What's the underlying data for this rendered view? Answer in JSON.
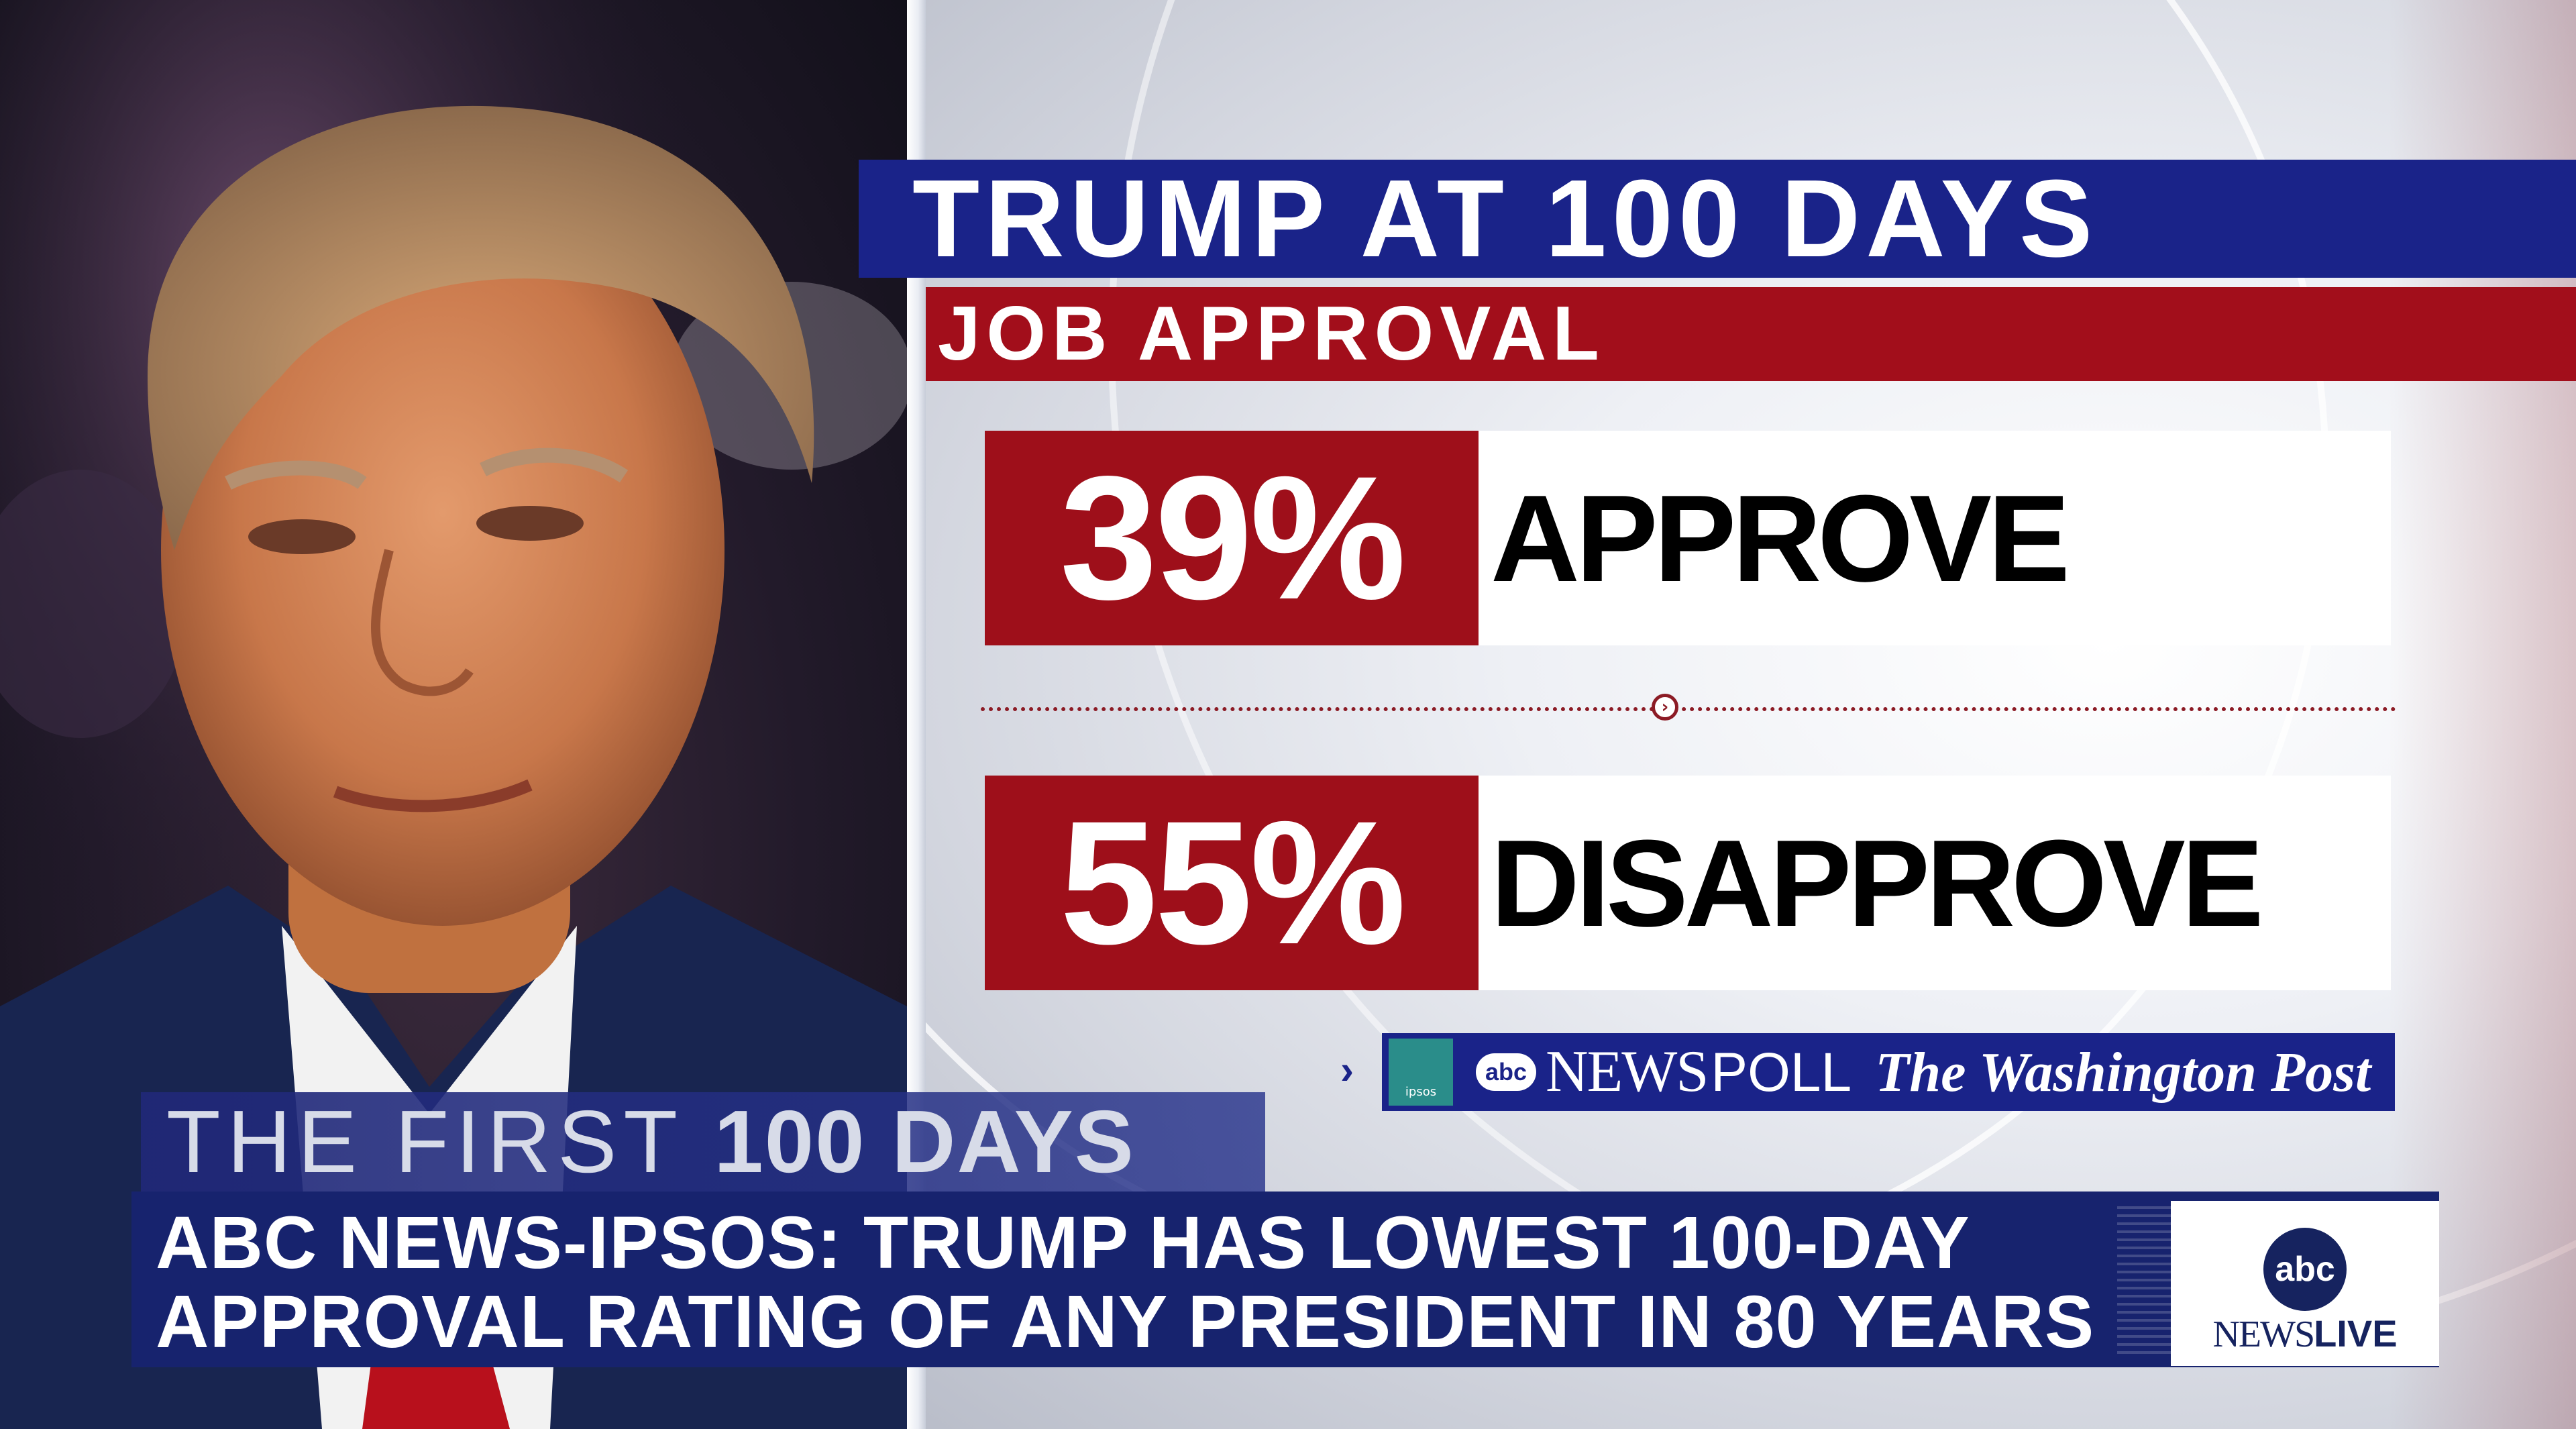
{
  "headline": {
    "title": "TRUMP AT 100 DAYS",
    "subtitle": "JOB APPROVAL"
  },
  "stats": [
    {
      "percent": "39%",
      "label": "APPROVE",
      "value": 39
    },
    {
      "percent": "55%",
      "label": "DISAPPROVE",
      "value": 55
    }
  ],
  "source": {
    "ipsos": "ipsos",
    "abc": "abc",
    "news_poll_1": "NEWS",
    "news_poll_2": "POLL",
    "partner": "The Washington Post"
  },
  "segment": {
    "part1": "THE FIRST",
    "part2": "100 DAYS"
  },
  "ticker": {
    "line1": "ABC NEWS-IPSOS: TRUMP HAS LOWEST 100-DAY",
    "line2": "APPROVAL RATING OF ANY PRESIDENT IN 80 YEARS"
  },
  "network": {
    "abc": "abc",
    "news": "NEWS",
    "live": "LIVE"
  },
  "colors": {
    "blue": "#1a2389",
    "red": "#a20e1b",
    "ticker_blue": "#17236e"
  }
}
